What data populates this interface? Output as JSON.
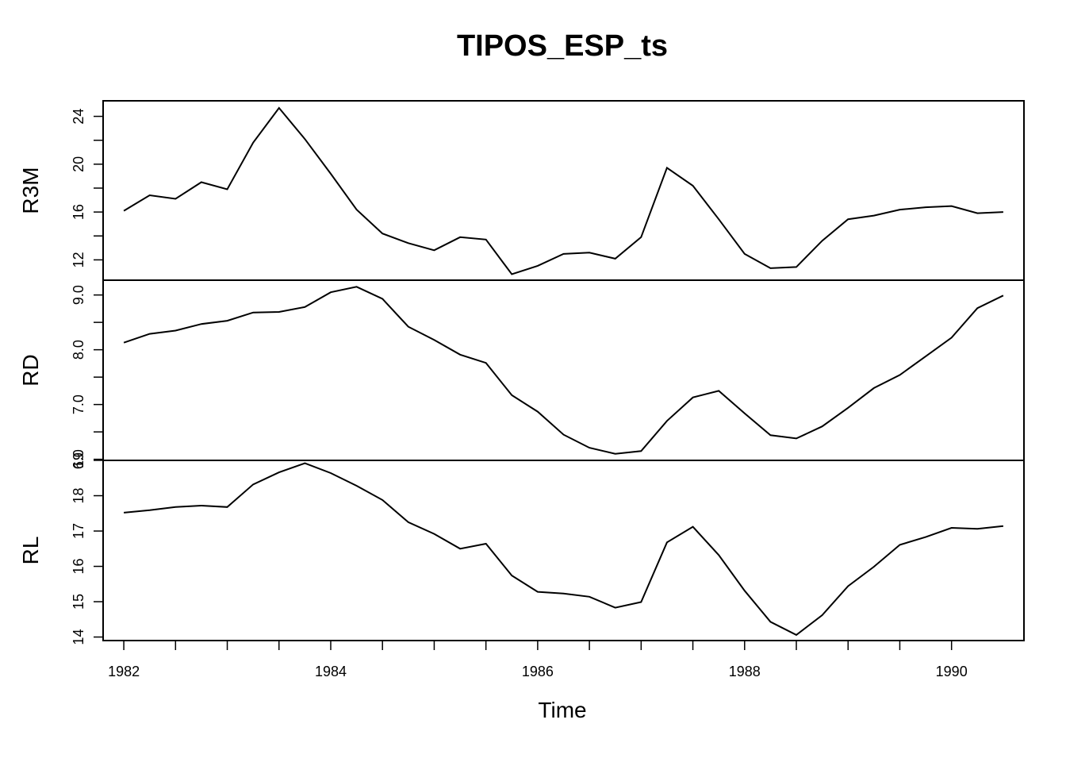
{
  "chart_data": {
    "type": "line",
    "title": "TIPOS_ESP_ts",
    "xlabel": "Time",
    "xlim": [
      1981.8,
      1990.7
    ],
    "x_ticks": [
      "1982",
      "1984",
      "1986",
      "1988",
      "1990"
    ],
    "x": [
      1982,
      1982.25,
      1982.5,
      1982.75,
      1983,
      1983.25,
      1983.5,
      1983.75,
      1984,
      1984.25,
      1984.5,
      1984.75,
      1985,
      1985.25,
      1985.5,
      1985.75,
      1986,
      1986.25,
      1986.5,
      1986.75,
      1987,
      1987.25,
      1987.5,
      1987.75,
      1988,
      1988.25,
      1988.5,
      1988.75,
      1989,
      1989.25,
      1989.5,
      1989.75,
      1990,
      1990.25,
      1990.5
    ],
    "grid": false,
    "panels": [
      {
        "name": "R3M",
        "ylim": [
          10.3,
          25.3
        ],
        "y_ticks": [
          "12",
          "16",
          "20",
          "24"
        ],
        "values": [
          16.1,
          17.4,
          17.1,
          18.5,
          17.9,
          21.8,
          24.7,
          22.1,
          19.2,
          16.2,
          14.2,
          13.4,
          12.8,
          13.9,
          13.7,
          10.8,
          11.5,
          12.5,
          12.6,
          12.1,
          13.9,
          19.7,
          18.2,
          15.4,
          12.5,
          11.3,
          11.4,
          13.6,
          15.4,
          15.7,
          16.2,
          16.4,
          16.5,
          15.9,
          16.0
        ]
      },
      {
        "name": "RD",
        "ylim": [
          5.98,
          9.27
        ],
        "y_ticks": [
          "6.0",
          "7.0",
          "8.0",
          "9.0"
        ],
        "values": [
          8.13,
          8.29,
          8.35,
          8.47,
          8.53,
          8.68,
          8.69,
          8.78,
          9.05,
          9.15,
          8.93,
          8.42,
          8.18,
          7.91,
          7.76,
          7.17,
          6.87,
          6.45,
          6.21,
          6.1,
          6.15,
          6.7,
          7.13,
          7.25,
          6.84,
          6.44,
          6.38,
          6.6,
          6.94,
          7.3,
          7.54,
          7.88,
          8.22,
          8.76,
          8.99
        ]
      },
      {
        "name": "RL",
        "ylim": [
          13.9,
          19.0
        ],
        "y_ticks": [
          "14",
          "15",
          "16",
          "17",
          "18",
          "19"
        ],
        "values": [
          17.52,
          17.59,
          17.68,
          17.72,
          17.68,
          18.32,
          18.66,
          18.92,
          18.64,
          18.28,
          17.88,
          17.25,
          16.92,
          16.5,
          16.64,
          15.74,
          15.28,
          15.23,
          15.14,
          14.83,
          14.99,
          16.68,
          17.12,
          16.32,
          15.31,
          14.43,
          14.06,
          14.62,
          15.44,
          15.99,
          16.61,
          16.83,
          17.09,
          17.06,
          17.14
        ]
      }
    ]
  }
}
